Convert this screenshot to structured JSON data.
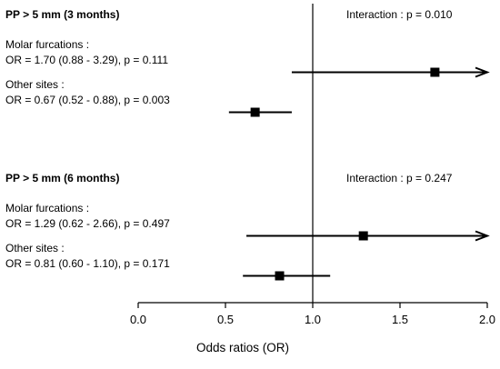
{
  "chart_data": {
    "type": "forest",
    "xlabel": "Odds ratios (OR)",
    "xlim": [
      0.0,
      2.0
    ],
    "xticks": [
      "0.0",
      "0.5",
      "1.0",
      "1.5",
      "2.0"
    ],
    "reference_line": 1.0,
    "groups": [
      {
        "heading": "PP > 5 mm (3 months)",
        "interaction_prefix": "Interaction : ",
        "interaction_p": "p = 0.010",
        "rows": [
          {
            "label": "Molar furcations :",
            "stat_prefix": "OR = 1.70 (0.88 - 3.29), ",
            "p_text": "p = 0.111",
            "or": 1.7,
            "ci_low": 0.88,
            "ci_high": 3.29,
            "arrow_right": true
          },
          {
            "label": "Other sites :",
            "stat_prefix": "OR = 0.67 (0.52 - 0.88), ",
            "p_text": "p = 0.003",
            "or": 0.67,
            "ci_low": 0.52,
            "ci_high": 0.88,
            "arrow_right": false
          }
        ]
      },
      {
        "heading": "PP > 5 mm (6 months)",
        "interaction_prefix": "Interaction : ",
        "interaction_p": "p = 0.247",
        "rows": [
          {
            "label": "Molar furcations :",
            "stat_prefix": "OR = 1.29 (0.62 - 2.66), ",
            "p_text": "p = 0.497",
            "or": 1.29,
            "ci_low": 0.62,
            "ci_high": 2.66,
            "arrow_right": true
          },
          {
            "label": "Other sites :",
            "stat_prefix": "OR = 0.81 (0.60 - 1.10), ",
            "p_text": "p = 0.171",
            "or": 0.81,
            "ci_low": 0.6,
            "ci_high": 1.1,
            "arrow_right": false
          }
        ]
      }
    ]
  }
}
